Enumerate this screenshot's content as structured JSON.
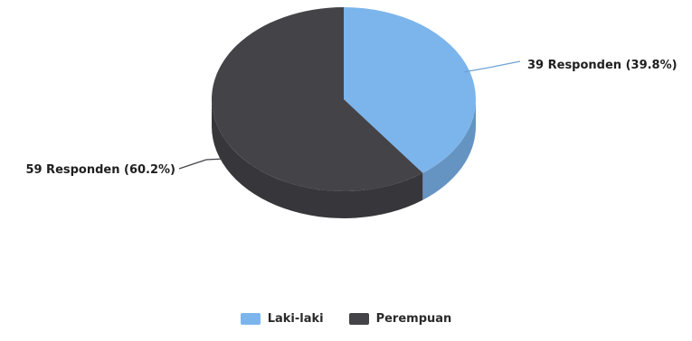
{
  "chart_data": {
    "type": "pie",
    "title": "",
    "three_d": true,
    "legend_position": "bottom",
    "slices": [
      {
        "label": "Laki-laki",
        "value": 39,
        "percent": 39.8,
        "color": "#7cb5ec",
        "data_label": "39 Responden (39.8%)"
      },
      {
        "label": "Perempuan",
        "value": 59,
        "percent": 60.2,
        "color": "#434348",
        "data_label": "59 Responden (60.2%)"
      }
    ]
  }
}
